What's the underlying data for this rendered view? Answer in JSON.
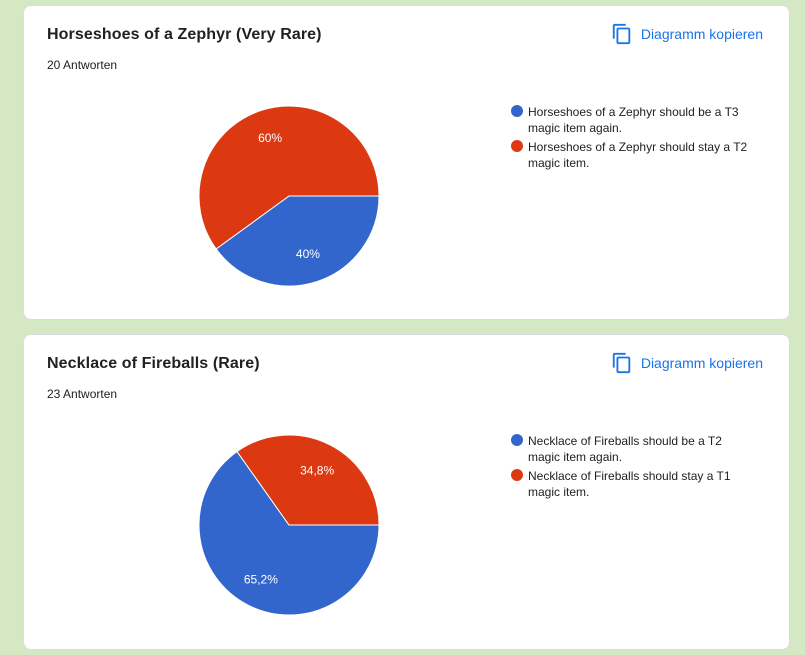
{
  "colors": {
    "blue": "#3366cc",
    "red": "#dc3912",
    "accent": "#1a73e8"
  },
  "copy_icon": "copy-icon",
  "cards": [
    {
      "title": "Horseshoes of a Zephyr (Very Rare)",
      "count": "20 Antworten",
      "copy_label": "Diagramm kopieren"
    },
    {
      "title": "Necklace of Fireballs (Rare)",
      "count": "23 Antworten",
      "copy_label": "Diagramm kopieren"
    }
  ],
  "chart_data": [
    {
      "type": "pie",
      "slices": [
        {
          "label": "Horseshoes of a Zephyr should be a T3 magic item again.",
          "value": 40,
          "value_label": "40%",
          "color": "#3366cc"
        },
        {
          "label": "Horseshoes of a Zephyr should stay a T2 magic item.",
          "value": 60,
          "value_label": "60%",
          "color": "#dc3912"
        }
      ],
      "legend_position": "right"
    },
    {
      "type": "pie",
      "slices": [
        {
          "label": "Necklace of Fireballs should be a T2 magic item again.",
          "value": 65.2,
          "value_label": "65,2%",
          "color": "#3366cc"
        },
        {
          "label": "Necklace of Fireballs should stay a T1 magic item.",
          "value": 34.8,
          "value_label": "34,8%",
          "color": "#dc3912"
        }
      ],
      "legend_position": "right"
    }
  ]
}
